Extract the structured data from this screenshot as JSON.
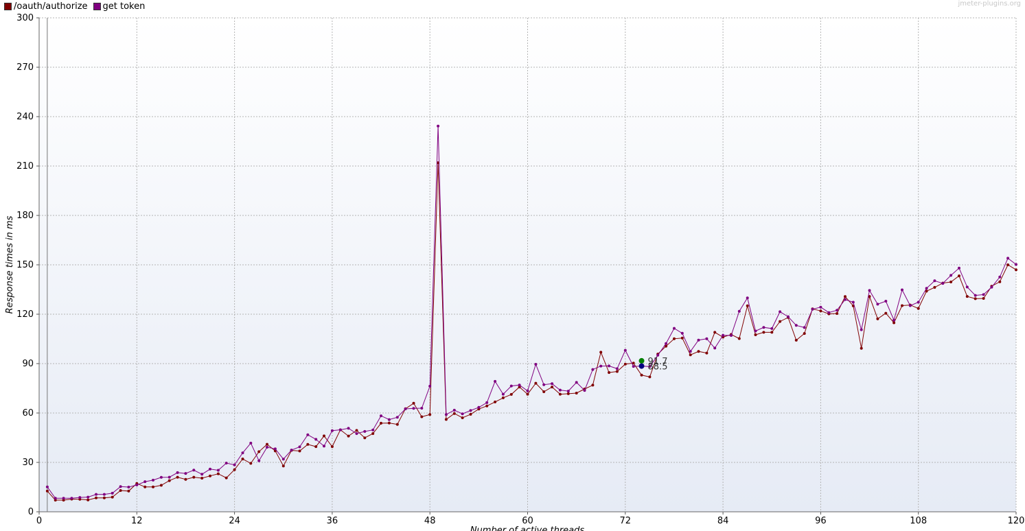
{
  "legend": [
    {
      "label": "/oauth/authorize",
      "color": "#800000"
    },
    {
      "label": "get token",
      "color": "#800080"
    }
  ],
  "watermark": "jmeter-plugins.org",
  "chart_data": {
    "type": "line",
    "xlabel": "Number of active threads",
    "ylabel": "Response times in ms",
    "xlim": [
      0,
      120
    ],
    "ylim": [
      0,
      300
    ],
    "x_ticks": [
      0,
      12,
      24,
      36,
      48,
      60,
      72,
      84,
      96,
      108,
      120
    ],
    "y_ticks": [
      0,
      30,
      60,
      90,
      120,
      150,
      180,
      210,
      240,
      270,
      300
    ],
    "grid": true,
    "legend_position": "top-left",
    "x": [
      1,
      2,
      3,
      4,
      5,
      6,
      7,
      8,
      9,
      10,
      11,
      12,
      13,
      14,
      15,
      16,
      17,
      18,
      19,
      20,
      21,
      22,
      23,
      24,
      25,
      26,
      27,
      28,
      29,
      30,
      31,
      32,
      33,
      34,
      35,
      36,
      37,
      38,
      39,
      40,
      41,
      42,
      43,
      44,
      45,
      46,
      47,
      48,
      49,
      50,
      51,
      52,
      53,
      54,
      55,
      56,
      57,
      58,
      59,
      60,
      61,
      62,
      63,
      64,
      65,
      66,
      67,
      68,
      69,
      70,
      71,
      72,
      73,
      74,
      75,
      76,
      77,
      78,
      79,
      80,
      81,
      82,
      83,
      84,
      85,
      86,
      87,
      88,
      89,
      90,
      91,
      92,
      93,
      94,
      95,
      96,
      97,
      98,
      99,
      100,
      101,
      102,
      103,
      104,
      105,
      106,
      107,
      108,
      109,
      110,
      111,
      112,
      113,
      114,
      115,
      116,
      117,
      118,
      119,
      120
    ],
    "series": [
      {
        "name": "/oauth/authorize",
        "color": "#800000",
        "values": [
          12.6,
          7.1,
          7.1,
          7.7,
          7.6,
          7.2,
          8.4,
          8.4,
          8.9,
          12.9,
          12.6,
          17.2,
          15.1,
          15.1,
          16.1,
          18.9,
          21.0,
          19.7,
          21.0,
          20.4,
          21.8,
          23.1,
          20.6,
          25.6,
          32.1,
          29.4,
          36.5,
          41.0,
          37.0,
          27.8,
          37.3,
          36.9,
          40.9,
          39.6,
          46.1,
          39.6,
          49.8,
          46.0,
          49.4,
          44.9,
          47.5,
          53.8,
          53.9,
          53.1,
          62.6,
          65.9,
          57.7,
          59.1,
          212.0,
          56.1,
          59.7,
          57.1,
          59.2,
          62.4,
          64.3,
          66.7,
          69.2,
          71.3,
          75.8,
          71.4,
          78.1,
          72.9,
          75.8,
          71.4,
          71.7,
          72.1,
          74.6,
          76.9,
          96.9,
          84.6,
          85.2,
          89.7,
          90.3,
          83.0,
          81.9,
          95.8,
          100.6,
          105.1,
          105.5,
          95.3,
          97.4,
          96.4,
          109.0,
          106.1,
          107.7,
          105.2,
          125.1,
          107.5,
          109.0,
          109.0,
          115.6,
          118.0,
          104.2,
          108.3,
          123.2,
          122.0,
          120.2,
          120.4,
          130.7,
          125.1,
          99.3,
          130.8,
          117.2,
          120.6,
          114.8,
          125.2,
          125.6,
          123.5,
          134.0,
          136.3,
          138.9,
          139.6,
          143.3,
          130.8,
          129.4,
          129.6,
          137.0,
          139.7,
          150.0,
          147.0
        ]
      },
      {
        "name": "get token",
        "color": "#800080",
        "values": [
          15.1,
          8.2,
          8.2,
          8.2,
          8.7,
          8.9,
          10.6,
          10.6,
          11.3,
          15.3,
          15.0,
          16.3,
          18.3,
          19.2,
          20.9,
          21.0,
          23.8,
          23.3,
          25.3,
          22.8,
          25.9,
          25.2,
          29.6,
          28.5,
          35.8,
          41.7,
          31.0,
          39.2,
          38.2,
          32.0,
          37.5,
          39.4,
          46.8,
          44.0,
          39.9,
          49.3,
          49.8,
          50.7,
          47.5,
          48.8,
          49.7,
          58.3,
          56.0,
          57.4,
          62.5,
          62.8,
          62.9,
          76.3,
          234.3,
          59.1,
          61.7,
          59.5,
          61.5,
          63.4,
          66.3,
          79.2,
          71.4,
          76.4,
          77.0,
          73.4,
          89.6,
          77.2,
          77.8,
          73.9,
          73.3,
          78.6,
          73.7,
          86.4,
          88.5,
          88.6,
          86.9,
          98.1,
          88.3,
          88.5,
          88.2,
          95.1,
          102.2,
          111.4,
          108.4,
          97.4,
          104.3,
          105.1,
          99.4,
          107.2,
          107.1,
          121.8,
          129.9,
          109.8,
          112.0,
          111.3,
          121.5,
          118.5,
          113.2,
          111.9,
          123.0,
          124.3,
          121.0,
          122.4,
          128.9,
          127.3,
          110.6,
          134.4,
          126.1,
          127.9,
          116.4,
          134.8,
          125.2,
          127.3,
          135.7,
          140.3,
          138.7,
          143.6,
          148.0,
          136.5,
          131.4,
          131.9,
          136.4,
          142.6,
          154.0,
          150.2
        ]
      }
    ],
    "point_labels": [
      {
        "text": "91.7",
        "x": 74,
        "y": 91.7,
        "marker_color": "#008000"
      },
      {
        "text": "88.5",
        "x": 74,
        "y": 88.5,
        "marker_color": "#000080"
      }
    ]
  }
}
